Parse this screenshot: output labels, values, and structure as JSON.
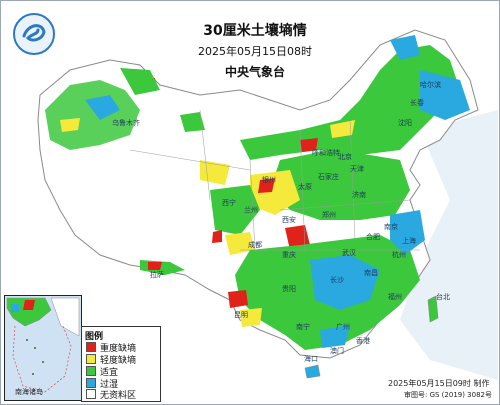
{
  "header": {
    "title": "30厘米土壤墒情",
    "datetime": "2025年05月15日08时",
    "agency": "中央气象台"
  },
  "legend": {
    "title": "图例",
    "items": [
      {
        "label": "重度缺墒",
        "color": "#e0221b"
      },
      {
        "label": "轻度缺墒",
        "color": "#f5ea3c"
      },
      {
        "label": "适宜",
        "color": "#3cc83c"
      },
      {
        "label": "过湿",
        "color": "#2aa8e0"
      },
      {
        "label": "无资料区",
        "color": "#ffffff"
      }
    ]
  },
  "inset": {
    "label": "南海诸岛"
  },
  "footer": {
    "made_time": "2025年05月15日09时 制作",
    "approval": "审图号: GS (2019) 3082号"
  },
  "places": {
    "beijing": "北京",
    "tianjin": "天津",
    "shenyang": "沈阳",
    "changchun": "长春",
    "harbin": "哈尔滨",
    "shijiazhuang": "石家庄",
    "taiyuan": "太原",
    "jinan": "济南",
    "zhengzhou": "郑州",
    "xian": "西安",
    "lanzhou": "兰州",
    "xining": "西宁",
    "yinchuan": "银川",
    "wuhan": "武汉",
    "hefei": "合肥",
    "nanjing": "南京",
    "shanghai": "上海",
    "hangzhou": "杭州",
    "changsha": "长沙",
    "nanchang": "南昌",
    "fuzhou": "福州",
    "chengdu": "成都",
    "chongqing": "重庆",
    "guiyang": "贵阳",
    "kunming": "昆明",
    "guangzhou": "广州",
    "nanning": "南宁",
    "haikou": "海口",
    "taipei": "台北",
    "lhasa": "拉萨",
    "urumqi": "乌鲁木齐",
    "hohhot": "呼和浩特",
    "hongkong": "香港",
    "macau": "澳门"
  },
  "colors": {
    "severe": "#e0221b",
    "light": "#f5ea3c",
    "suitable": "#3cc83c",
    "wet": "#2aa8e0",
    "nodata": "#ffffff",
    "sea": "#cfe2f3"
  }
}
